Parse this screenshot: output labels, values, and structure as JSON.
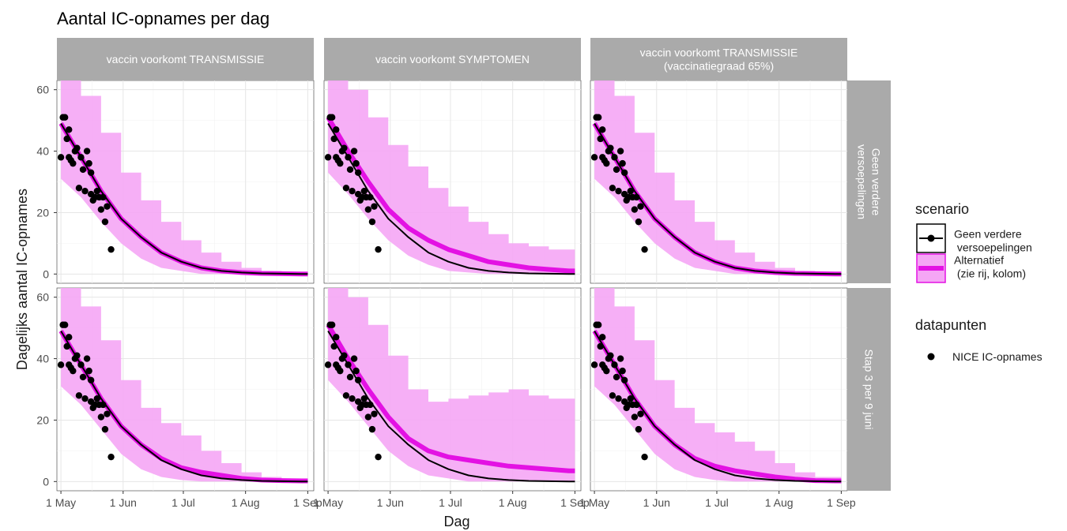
{
  "chart_data": {
    "type": "line",
    "title": "Aantal IC-opnames per dag",
    "xlabel": "Dag",
    "ylabel": "Dagelijks aantal IC-opnames",
    "x_ticks": [
      "1 May",
      "1 Jun",
      "1 Jul",
      "1 Aug",
      "1 Sep"
    ],
    "x_tick_days": [
      0,
      31,
      61,
      92,
      123
    ],
    "xlim_days": [
      -2,
      126
    ],
    "y_ticks": [
      0,
      20,
      40,
      60
    ],
    "ylim": [
      -3,
      63
    ],
    "grid": true,
    "legend_position": "right",
    "columns": [
      {
        "label": "vaccin voorkomt TRANSMISSIE"
      },
      {
        "label": "vaccin voorkomt SYMPTOMEN"
      },
      {
        "label": "vaccin voorkomt TRANSMISSIE\n(vaccinatiegraad 65%)"
      }
    ],
    "rows": [
      {
        "label": "Geen verdere\nversoepelingen"
      },
      {
        "label": "Stap 3 per 9 juni"
      }
    ],
    "legend": {
      "scenario_title": "scenario",
      "scenario_items": [
        {
          "label": "Geen verdere\n versoepelingen",
          "color": "#000000"
        },
        {
          "label": "Alternatief\n (zie rij, kolom)",
          "color": "#e312e3"
        }
      ],
      "data_title": "datapunten",
      "data_items": [
        {
          "label": "NICE IC-opnames",
          "color": "#000000"
        }
      ]
    },
    "colors": {
      "baseline_line": "#000000",
      "alternative_line": "#e312e3",
      "alternative_band": "#f5a6f5",
      "strip_background": "#aaaaaa",
      "grid": "#e6e6e6"
    },
    "baseline": {
      "x": [
        0,
        10,
        20,
        30,
        40,
        50,
        60,
        70,
        80,
        90,
        100,
        110,
        120,
        123
      ],
      "y": [
        49,
        38,
        27,
        18,
        12,
        7,
        4,
        2,
        1,
        0.5,
        0.2,
        0.1,
        0,
        0
      ]
    },
    "panels": [
      {
        "col": 0,
        "row": 0,
        "alt": {
          "x": [
            0,
            10,
            20,
            30,
            40,
            50,
            60,
            70,
            80,
            90,
            100,
            110,
            120,
            123
          ],
          "y": [
            49,
            38,
            27,
            18,
            12,
            7,
            4,
            2,
            1,
            0.5,
            0.2,
            0.1,
            0,
            0
          ]
        },
        "band": {
          "x": [
            0,
            10,
            20,
            30,
            40,
            50,
            60,
            70,
            80,
            90,
            100,
            110,
            123
          ],
          "lower": [
            31,
            25,
            17,
            10,
            5,
            2,
            1,
            0,
            0,
            0,
            0,
            0,
            0
          ],
          "upper": [
            63,
            58,
            46,
            33,
            24,
            17,
            11,
            7,
            4,
            2,
            1,
            0.5,
            0.5
          ]
        }
      },
      {
        "col": 1,
        "row": 0,
        "alt": {
          "x": [
            0,
            10,
            20,
            30,
            40,
            50,
            60,
            70,
            80,
            90,
            100,
            110,
            120,
            123
          ],
          "y": [
            51,
            40,
            30,
            21,
            15,
            11,
            8,
            6,
            4,
            3,
            2,
            1.5,
            1,
            1
          ]
        },
        "band": {
          "x": [
            0,
            10,
            20,
            30,
            40,
            50,
            60,
            70,
            80,
            90,
            100,
            110,
            123
          ],
          "lower": [
            33,
            26,
            18,
            11,
            6,
            3,
            1,
            0.5,
            0,
            0,
            0,
            0,
            0
          ],
          "upper": [
            63,
            60,
            51,
            42,
            35,
            28,
            22,
            17,
            13,
            10,
            9,
            8,
            7
          ]
        }
      },
      {
        "col": 2,
        "row": 0,
        "alt": {
          "x": [
            0,
            10,
            20,
            30,
            40,
            50,
            60,
            70,
            80,
            90,
            100,
            110,
            120,
            123
          ],
          "y": [
            49,
            38,
            27,
            18,
            12,
            7,
            4,
            2,
            1,
            0.5,
            0.2,
            0.1,
            0,
            0
          ]
        },
        "band": {
          "x": [
            0,
            10,
            20,
            30,
            40,
            50,
            60,
            70,
            80,
            90,
            100,
            110,
            123
          ],
          "lower": [
            31,
            25,
            17,
            10,
            5,
            2,
            1,
            0,
            0,
            0,
            0,
            0,
            0
          ],
          "upper": [
            63,
            58,
            46,
            33,
            24,
            17,
            11,
            7,
            4,
            2,
            1,
            0.5,
            0.5
          ]
        }
      },
      {
        "col": 0,
        "row": 1,
        "alt": {
          "x": [
            0,
            10,
            20,
            30,
            40,
            50,
            60,
            70,
            80,
            90,
            100,
            110,
            120,
            123
          ],
          "y": [
            49,
            38,
            27,
            18,
            12,
            7.5,
            4.5,
            3,
            2,
            1,
            0.5,
            0.3,
            0.2,
            0.2
          ]
        },
        "band": {
          "x": [
            0,
            10,
            20,
            30,
            40,
            50,
            60,
            70,
            80,
            90,
            100,
            110,
            123
          ],
          "lower": [
            31,
            25,
            17,
            9,
            4,
            1.5,
            0.5,
            0,
            0,
            0,
            0,
            0,
            0
          ],
          "upper": [
            63,
            57,
            46,
            33,
            24,
            19,
            15,
            10,
            6,
            3,
            1.5,
            1,
            1
          ]
        }
      },
      {
        "col": 1,
        "row": 1,
        "alt": {
          "x": [
            0,
            10,
            20,
            30,
            40,
            50,
            60,
            70,
            80,
            90,
            100,
            110,
            120,
            123
          ],
          "y": [
            51,
            40,
            30,
            21,
            14,
            10,
            8,
            7,
            6,
            5,
            4.5,
            4,
            3.5,
            3.5
          ]
        },
        "band": {
          "x": [
            0,
            10,
            20,
            30,
            40,
            50,
            60,
            70,
            80,
            90,
            100,
            110,
            123
          ],
          "lower": [
            33,
            26,
            18,
            10,
            5,
            2,
            1,
            0,
            0,
            0,
            0,
            0,
            0
          ],
          "upper": [
            63,
            60,
            51,
            41,
            30,
            26,
            27,
            28,
            29,
            30,
            28,
            27,
            26
          ]
        }
      },
      {
        "col": 2,
        "row": 1,
        "alt": {
          "x": [
            0,
            10,
            20,
            30,
            40,
            50,
            60,
            70,
            80,
            90,
            100,
            110,
            120,
            123
          ],
          "y": [
            49,
            38,
            27,
            18,
            12,
            7.5,
            5,
            3.5,
            2.5,
            1.5,
            0.8,
            0.3,
            0.2,
            0.2
          ]
        },
        "band": {
          "x": [
            0,
            10,
            20,
            30,
            40,
            50,
            60,
            70,
            80,
            90,
            100,
            110,
            123
          ],
          "lower": [
            31,
            25,
            17,
            9,
            4,
            1.5,
            0.5,
            0,
            0,
            0,
            0,
            0,
            0
          ],
          "upper": [
            63,
            57,
            46,
            33,
            24,
            19,
            16,
            13,
            10,
            6,
            3,
            1.5,
            1
          ]
        }
      }
    ],
    "observations": {
      "x": [
        0,
        1,
        2,
        3,
        4,
        4,
        5,
        6,
        7,
        8,
        9,
        10,
        11,
        12,
        13,
        14,
        15,
        15,
        16,
        17,
        18,
        19,
        20,
        21,
        22,
        23,
        25
      ],
      "y": [
        38,
        51,
        51,
        44,
        47,
        38,
        37,
        36,
        40,
        41,
        28,
        38,
        34,
        27,
        40,
        36,
        33,
        26,
        24,
        25,
        27,
        25,
        21,
        25,
        17,
        22,
        8
      ]
    }
  }
}
